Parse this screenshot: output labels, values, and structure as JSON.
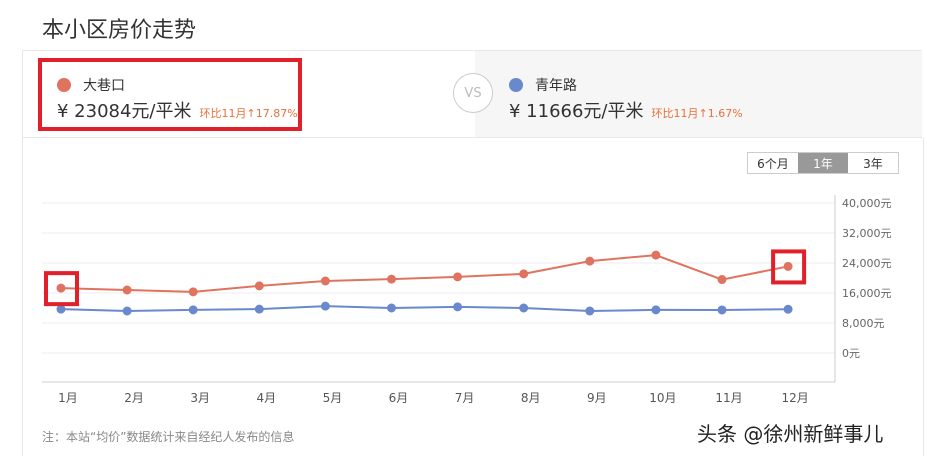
{
  "title": "本小区房价走势",
  "left": {
    "name": "大巷口",
    "price": "¥ 23084元/平米",
    "change": "环比11月↑17.87%",
    "color": "#e0735f"
  },
  "right": {
    "name": "青年路",
    "price": "¥ 11666元/平米",
    "change": "环比11月↑1.67%",
    "color": "#6a89cc"
  },
  "vs": "VS",
  "tabs": [
    {
      "label": "6个月",
      "active": false
    },
    {
      "label": "1年",
      "active": true
    },
    {
      "label": "3年",
      "active": false
    }
  ],
  "note": "注：本站“均价”数据统计来自经纪人发布的信息",
  "watermark": "头条 @徐州新鲜事儿",
  "chart_data": {
    "type": "line",
    "categories": [
      "1月",
      "2月",
      "3月",
      "4月",
      "5月",
      "6月",
      "7月",
      "8月",
      "9月",
      "10月",
      "11月",
      "12月"
    ],
    "yticks": [
      "40,000元",
      "32,000元",
      "24,000元",
      "16,000元",
      "8,000元",
      "0元"
    ],
    "ylim": [
      -8000,
      40000
    ],
    "grid": true,
    "y_axis_position": "right",
    "series": [
      {
        "name": "大巷口",
        "color": "#e0735f",
        "values": [
          17300,
          16800,
          16300,
          17900,
          19200,
          19700,
          20300,
          21100,
          24500,
          26100,
          19584,
          23084
        ]
      },
      {
        "name": "青年路",
        "color": "#6a89cc",
        "values": [
          11700,
          11200,
          11500,
          11700,
          12500,
          12000,
          12300,
          12000,
          11200,
          11500,
          11474,
          11666
        ]
      }
    ],
    "highlighted": [
      "1月",
      "12月"
    ]
  }
}
